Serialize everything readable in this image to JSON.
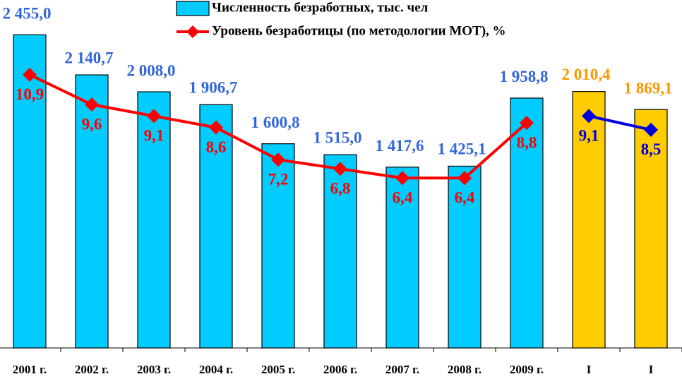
{
  "chart_data": {
    "type": "bar-line",
    "categories": [
      "2001 г.",
      "2002 г.",
      "2003 г.",
      "2004 г.",
      "2005 г.",
      "2006 г.",
      "2007 г.",
      "2008 г.",
      "2009 г.",
      "I",
      "I"
    ],
    "ylim": [
      0,
      2700
    ],
    "y2lim": [
      -1,
      14
    ],
    "series": [
      {
        "name": "Численность безработных, тыс. чел",
        "type": "bar",
        "color": "#00ccff",
        "colors": [
          "#00ccff",
          "#00ccff",
          "#00ccff",
          "#00ccff",
          "#00ccff",
          "#00ccff",
          "#00ccff",
          "#00ccff",
          "#00ccff",
          "#ffcc00",
          "#ffcc00"
        ],
        "label_colors": [
          "#3366dd",
          "#3366dd",
          "#3366dd",
          "#3366dd",
          "#3366dd",
          "#3366dd",
          "#3366dd",
          "#3366dd",
          "#3366dd",
          "#ff9900",
          "#ff9900"
        ],
        "values": [
          2455.0,
          2140.7,
          2008.0,
          1906.7,
          1600.8,
          1515.0,
          1417.6,
          1425.1,
          1958.8,
          2010.4,
          1869.1
        ],
        "value_labels": [
          "2 455,0",
          "2 140,7",
          "2 008,0",
          "1 906,7",
          "1 600,8",
          "1 515,0",
          "1 417,6",
          "1 425,1",
          "1 958,8",
          "2 010,4",
          "1 869,1"
        ]
      },
      {
        "name": "Уровень безработицы (по методологии МОТ), %",
        "type": "line",
        "axis": "y2",
        "color": "#ff0000",
        "values": [
          10.9,
          9.6,
          9.1,
          8.6,
          7.2,
          6.8,
          6.4,
          6.4,
          8.8,
          null,
          null
        ],
        "value_labels": [
          "10,9",
          "9,6",
          "9,1",
          "8,6",
          "7,2",
          "6,8",
          "6,4",
          "6,4",
          "8,8",
          null,
          null
        ]
      },
      {
        "type": "line",
        "axis": "y2",
        "color": "#0000dd",
        "values": [
          null,
          null,
          null,
          null,
          null,
          null,
          null,
          null,
          null,
          9.1,
          8.5
        ],
        "value_labels": [
          null,
          null,
          null,
          null,
          null,
          null,
          null,
          null,
          null,
          "9,1",
          "8,5"
        ]
      }
    ]
  }
}
